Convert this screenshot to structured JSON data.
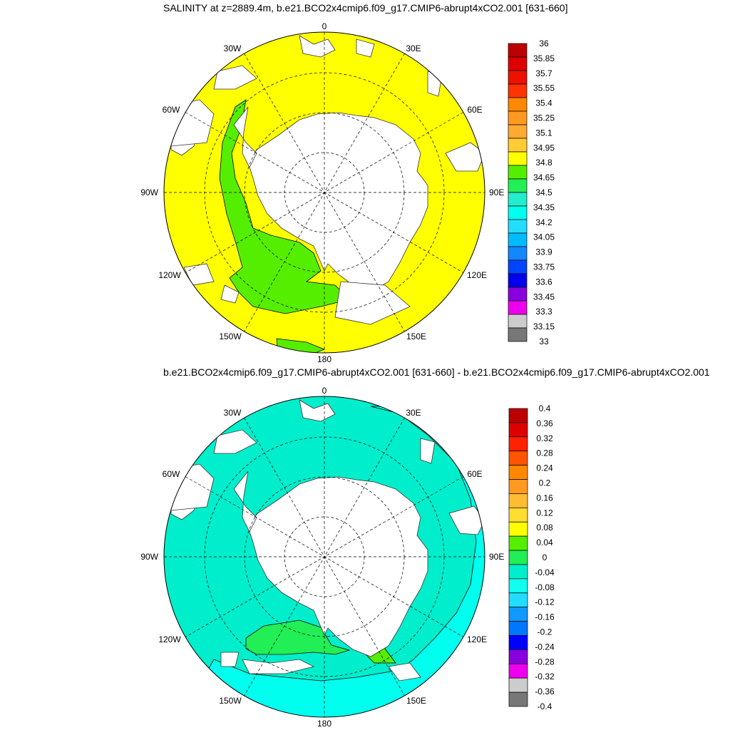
{
  "panels": [
    {
      "title": "SALINITY at z=2889.4m, b.e21.BCO2x4cmip6.f09_g17.CMIP6-abrupt4xCO2.001 [631-660]",
      "lon_labels": [
        "0",
        "30E",
        "60E",
        "90E",
        "120E",
        "150E",
        "180",
        "150W",
        "120W",
        "90W",
        "60W",
        "30W"
      ],
      "colorbar": {
        "labels": [
          "36",
          "35.85",
          "35.7",
          "35.55",
          "35.4",
          "35.25",
          "35.1",
          "34.95",
          "34.8",
          "34.65",
          "34.5",
          "34.35",
          "34.2",
          "34.05",
          "33.9",
          "33.75",
          "33.6",
          "33.45",
          "33.3",
          "33.15",
          "33"
        ],
        "colors": [
          "#bb0000",
          "#dd0000",
          "#ee1100",
          "#ff3300",
          "#ff8800",
          "#ff9922",
          "#ffaa33",
          "#ffcc33",
          "#ffff00",
          "#55ee00",
          "#22ee55",
          "#22eecc",
          "#00ffee",
          "#22ddff",
          "#00bbff",
          "#1188ff",
          "#0044ff",
          "#0000ee",
          "#8800dd",
          "#ee00ee",
          "#cccccc",
          "#777777"
        ],
        "value_range": [
          33,
          36
        ]
      }
    },
    {
      "title": "b.e21.BCO2x4cmip6.f09_g17.CMIP6-abrupt4xCO2.001 [631-660] - b.e21.BCO2x4cmip6.f09_g17.CMIP6-abrupt4xCO2.001",
      "lon_labels": [
        "0",
        "30E",
        "60E",
        "90E",
        "120E",
        "150E",
        "180",
        "150W",
        "120W",
        "90W",
        "60W",
        "30W"
      ],
      "colorbar": {
        "labels": [
          "0.4",
          "0.36",
          "0.32",
          "0.28",
          "0.24",
          "0.2",
          "0.16",
          "0.12",
          "0.08",
          "0.04",
          "0",
          "-0.04",
          "-0.08",
          "-0.12",
          "-0.16",
          "-0.2",
          "-0.24",
          "-0.28",
          "-0.32",
          "-0.36",
          "-0.4"
        ],
        "colors": [
          "#bb0000",
          "#dd0000",
          "#ff2200",
          "#ff5500",
          "#ff8800",
          "#ff9922",
          "#ffbb33",
          "#ffdd33",
          "#ffff00",
          "#55ee00",
          "#22ee55",
          "#00eecc",
          "#11ffee",
          "#22ddff",
          "#1199ff",
          "#0077ff",
          "#0000ff",
          "#8800dd",
          "#ee00ee",
          "#cccccc",
          "#777777"
        ],
        "value_range": [
          -0.4,
          0.4
        ]
      }
    }
  ],
  "colors": {
    "top_ocean": "#ffff00",
    "top_green": "#55ee00",
    "bottom_ocean": "#00eecc",
    "bottom_cyan": "#00ffee",
    "bottom_green": "#22ee55",
    "land": "#ffffff",
    "grid": "#000000"
  }
}
